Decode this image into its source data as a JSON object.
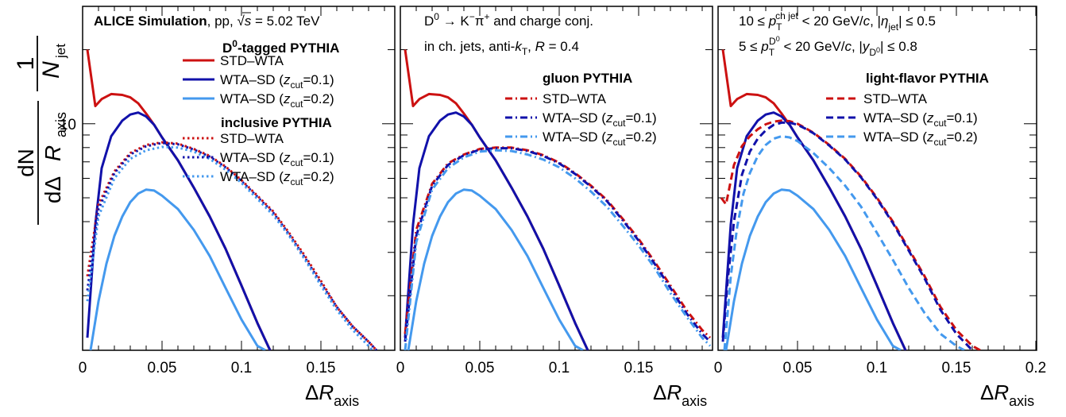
{
  "y_title": {
    "one": "1",
    "n": "N",
    "n_sub": "jet",
    "dn": "dN",
    "d": "dΔ",
    "r": "R",
    "r_sub": "axis"
  },
  "x_title": {
    "delta": "Δ",
    "r": "R",
    "sub": "axis"
  },
  "colors": {
    "red": "#cc1111",
    "darkblue": "#1111aa",
    "lightblue": "#4499ee"
  },
  "chart_data": [
    {
      "type": "line",
      "panel": "left",
      "xlim": [
        0,
        0.2
      ],
      "ylog": true,
      "y_tick_label": "10",
      "x_tick_labels": [
        "0",
        "0.05",
        "0.1",
        "0.15"
      ],
      "texts": {
        "alice": "ALICE Simulation",
        "system": ", pp, ",
        "sqrt": "√",
        "s": "s",
        "energy": " = 5.02 TeV",
        "head1_pre": "D",
        "head1_sup": "0",
        "head1_post": "-tagged PYTHIA",
        "head2": "inclusive PYTHIA"
      },
      "legend": [
        {
          "label": "STD–WTA",
          "style": "solid",
          "color": "red"
        },
        {
          "label": "WTA–SD (",
          "z": "z",
          "zsub": "cut",
          "rest": "=0.1)",
          "style": "solid",
          "color": "darkblue"
        },
        {
          "label": "WTA–SD (",
          "z": "z",
          "zsub": "cut",
          "rest": "=0.2)",
          "style": "solid",
          "color": "lightblue"
        },
        {
          "label": "STD–WTA",
          "style": "dotted",
          "color": "red"
        },
        {
          "label": "WTA–SD (",
          "z": "z",
          "zsub": "cut",
          "rest": "=0.1)",
          "style": "dotted",
          "color": "darkblue"
        },
        {
          "label": "WTA–SD (",
          "z": "z",
          "zsub": "cut",
          "rest": "=0.2)",
          "style": "dotted",
          "color": "lightblue"
        }
      ],
      "series": [
        {
          "style": "solid",
          "color": "red",
          "x": [
            0.003,
            0.008,
            0.012,
            0.018,
            0.025,
            0.03,
            0.035,
            0.04,
            0.045,
            0.05,
            0.06,
            0.07,
            0.08,
            0.09,
            0.1,
            0.11,
            0.118
          ],
          "y": [
            20,
            11.8,
            12.6,
            13.2,
            13.1,
            12.8,
            12.1,
            11,
            9.9,
            8.8,
            7.1,
            5.5,
            4.2,
            3.1,
            2.2,
            1.55,
            1.2
          ]
        },
        {
          "style": "solid",
          "color": "darkblue",
          "x": [
            0.003,
            0.008,
            0.012,
            0.018,
            0.025,
            0.03,
            0.035,
            0.04,
            0.045,
            0.05,
            0.06,
            0.07,
            0.08,
            0.09,
            0.1,
            0.11,
            0.118
          ],
          "y": [
            1.35,
            3.9,
            6.6,
            8.9,
            10.3,
            10.9,
            11.1,
            10.7,
            9.9,
            8.8,
            7.1,
            5.5,
            4.2,
            3.1,
            2.2,
            1.55,
            1.2
          ]
        },
        {
          "style": "solid",
          "color": "lightblue",
          "x": [
            0.005,
            0.01,
            0.015,
            0.02,
            0.025,
            0.03,
            0.035,
            0.04,
            0.045,
            0.05,
            0.06,
            0.07,
            0.08,
            0.09,
            0.1,
            0.11,
            0.115
          ],
          "y": [
            1.2,
            1.9,
            2.7,
            3.5,
            4.2,
            4.8,
            5.2,
            5.4,
            5.35,
            5.1,
            4.5,
            3.7,
            2.9,
            2.15,
            1.6,
            1.25,
            1.2
          ]
        },
        {
          "style": "dotted",
          "color": "red",
          "x": [
            0.003,
            0.01,
            0.02,
            0.03,
            0.04,
            0.05,
            0.06,
            0.07,
            0.08,
            0.09,
            0.1,
            0.11,
            0.12,
            0.13,
            0.14,
            0.15,
            0.16,
            0.17,
            0.18,
            0.185
          ],
          "y": [
            2.4,
            4.7,
            6.4,
            7.6,
            8.2,
            8.4,
            8.3,
            7.9,
            7.4,
            6.7,
            5.9,
            5.1,
            4.4,
            3.6,
            2.9,
            2.3,
            1.8,
            1.5,
            1.3,
            1.2
          ]
        },
        {
          "style": "dotted",
          "color": "darkblue",
          "x": [
            0.003,
            0.01,
            0.02,
            0.03,
            0.04,
            0.05,
            0.06,
            0.07,
            0.08,
            0.09,
            0.1,
            0.11,
            0.12,
            0.13,
            0.14,
            0.15,
            0.16,
            0.17,
            0.18,
            0.185
          ],
          "y": [
            2.1,
            4.5,
            6.3,
            7.5,
            8.1,
            8.35,
            8.25,
            7.85,
            7.35,
            6.65,
            5.85,
            5.05,
            4.35,
            3.55,
            2.85,
            2.25,
            1.8,
            1.5,
            1.3,
            1.2
          ]
        },
        {
          "style": "dotted",
          "color": "lightblue",
          "x": [
            0.003,
            0.01,
            0.02,
            0.03,
            0.04,
            0.05,
            0.06,
            0.07,
            0.08,
            0.09,
            0.1,
            0.11,
            0.12,
            0.13,
            0.14,
            0.15,
            0.16,
            0.17,
            0.18,
            0.185
          ],
          "y": [
            1.9,
            4.2,
            6.0,
            7.2,
            7.8,
            8.05,
            8.0,
            7.7,
            7.2,
            6.5,
            5.75,
            4.95,
            4.25,
            3.5,
            2.8,
            2.2,
            1.75,
            1.45,
            1.25,
            1.15
          ]
        }
      ]
    },
    {
      "type": "line",
      "panel": "middle",
      "xlim": [
        0,
        0.2
      ],
      "ylog": true,
      "x_tick_labels": [
        "0",
        "0.05",
        "0.1",
        "0.15"
      ],
      "texts": {
        "decay_d": "D",
        "decay_d_sup": "0",
        "decay_rest_pre": " → K",
        "decay_k_sup": "−",
        "decay_pi": "π",
        "decay_pi_sup": "+",
        "decay_post": " and charge conj.",
        "jets_pre": "in ch. jets, anti-",
        "jets_k": "k",
        "jets_k_sub": "T",
        "jets_sep": ", ",
        "jets_r": "R",
        "jets_post": " = 0.4",
        "head": "gluon PYTHIA"
      },
      "legend": [
        {
          "label": "STD–WTA",
          "style": "dashdot",
          "color": "red"
        },
        {
          "label": "WTA–SD (",
          "z": "z",
          "zsub": "cut",
          "rest": "=0.1)",
          "style": "dashdot",
          "color": "darkblue"
        },
        {
          "label": "WTA–SD (",
          "z": "z",
          "zsub": "cut",
          "rest": "=0.2)",
          "style": "dashdot",
          "color": "lightblue"
        }
      ],
      "series": [
        {
          "style": "solid",
          "color": "red",
          "x": [
            0.003,
            0.008,
            0.012,
            0.018,
            0.025,
            0.03,
            0.035,
            0.04,
            0.045,
            0.05,
            0.06,
            0.07,
            0.08,
            0.09,
            0.1,
            0.11,
            0.118
          ],
          "y": [
            20,
            11.8,
            12.6,
            13.2,
            13.1,
            12.8,
            12.1,
            11,
            9.9,
            8.8,
            7.1,
            5.5,
            4.2,
            3.1,
            2.2,
            1.55,
            1.2
          ]
        },
        {
          "style": "solid",
          "color": "darkblue",
          "x": [
            0.003,
            0.008,
            0.012,
            0.018,
            0.025,
            0.03,
            0.035,
            0.04,
            0.045,
            0.05,
            0.06,
            0.07,
            0.08,
            0.09,
            0.1,
            0.11,
            0.118
          ],
          "y": [
            1.35,
            3.9,
            6.6,
            8.9,
            10.3,
            10.9,
            11.1,
            10.7,
            9.9,
            8.8,
            7.1,
            5.5,
            4.2,
            3.1,
            2.2,
            1.55,
            1.2
          ]
        },
        {
          "style": "solid",
          "color": "lightblue",
          "x": [
            0.005,
            0.01,
            0.015,
            0.02,
            0.025,
            0.03,
            0.035,
            0.04,
            0.045,
            0.05,
            0.06,
            0.07,
            0.08,
            0.09,
            0.1,
            0.11,
            0.115
          ],
          "y": [
            1.2,
            1.9,
            2.7,
            3.5,
            4.2,
            4.8,
            5.2,
            5.4,
            5.35,
            5.1,
            4.5,
            3.7,
            2.9,
            2.15,
            1.6,
            1.25,
            1.2
          ]
        },
        {
          "style": "dashdot",
          "color": "red",
          "x": [
            0.003,
            0.01,
            0.02,
            0.03,
            0.04,
            0.05,
            0.06,
            0.07,
            0.08,
            0.09,
            0.1,
            0.11,
            0.12,
            0.13,
            0.14,
            0.15,
            0.16,
            0.17,
            0.18,
            0.19,
            0.195
          ],
          "y": [
            1.4,
            3.7,
            5.7,
            6.9,
            7.5,
            7.9,
            8.0,
            8.0,
            7.8,
            7.45,
            6.95,
            6.3,
            5.6,
            4.9,
            4.1,
            3.4,
            2.75,
            2.2,
            1.75,
            1.45,
            1.35
          ]
        },
        {
          "style": "dashdot",
          "color": "darkblue",
          "x": [
            0.003,
            0.01,
            0.02,
            0.03,
            0.04,
            0.05,
            0.06,
            0.07,
            0.08,
            0.09,
            0.1,
            0.11,
            0.12,
            0.13,
            0.14,
            0.15,
            0.16,
            0.17,
            0.18,
            0.19,
            0.195
          ],
          "y": [
            1.3,
            3.5,
            5.6,
            6.8,
            7.45,
            7.85,
            7.95,
            7.95,
            7.75,
            7.4,
            6.9,
            6.25,
            5.55,
            4.85,
            4.05,
            3.35,
            2.7,
            2.15,
            1.7,
            1.4,
            1.3
          ]
        },
        {
          "style": "dashdot",
          "color": "lightblue",
          "x": [
            0.003,
            0.01,
            0.02,
            0.03,
            0.04,
            0.05,
            0.06,
            0.07,
            0.08,
            0.09,
            0.1,
            0.11,
            0.12,
            0.13,
            0.14,
            0.15,
            0.16,
            0.17,
            0.18,
            0.19,
            0.195
          ],
          "y": [
            1.2,
            3.3,
            5.4,
            6.6,
            7.3,
            7.7,
            7.8,
            7.75,
            7.5,
            7.15,
            6.65,
            6.0,
            5.3,
            4.6,
            3.85,
            3.2,
            2.6,
            2.05,
            1.65,
            1.35,
            1.25
          ]
        }
      ]
    },
    {
      "type": "line",
      "panel": "right",
      "xlim": [
        0,
        0.2
      ],
      "ylog": true,
      "x_tick_labels": [
        "0",
        "0.05",
        "0.1",
        "0.15",
        "0.2"
      ],
      "texts": {
        "c1_pre": "10 ≤ ",
        "c1_p": "p",
        "c1_sub": "T",
        "c1_sup": "ch jet",
        "c1_mid": " < 20 GeV/",
        "c1_c": "c",
        "c1_sep": ", |",
        "c1_eta": "η",
        "c1_eta_sub": "jet",
        "c1_post": "| ≤ 0.5",
        "c2_pre": "5 ≤ ",
        "c2_p": "p",
        "c2_sub": "T",
        "c2_sup": "D",
        "c2_sup2": "0",
        "c2_mid": " < 20 GeV/",
        "c2_c": "c",
        "c2_sep": ", |",
        "c2_y": "y",
        "c2_y_sub": "D",
        "c2_y_sub2": "0",
        "c2_post": "| ≤ 0.8",
        "head": "light-flavor PYTHIA"
      },
      "legend": [
        {
          "label": "STD–WTA",
          "style": "dashed",
          "color": "red"
        },
        {
          "label": "WTA–SD (",
          "z": "z",
          "zsub": "cut",
          "rest": "=0.1)",
          "style": "dashed",
          "color": "darkblue"
        },
        {
          "label": "WTA–SD (",
          "z": "z",
          "zsub": "cut",
          "rest": "=0.2)",
          "style": "dashed",
          "color": "lightblue"
        }
      ],
      "series": [
        {
          "style": "solid",
          "color": "red",
          "x": [
            0.003,
            0.008,
            0.012,
            0.018,
            0.025,
            0.03,
            0.035,
            0.04,
            0.045,
            0.05,
            0.06,
            0.07,
            0.08,
            0.09,
            0.1,
            0.11,
            0.118
          ],
          "y": [
            20,
            11.8,
            12.6,
            13.2,
            13.1,
            12.8,
            12.1,
            11,
            9.9,
            8.8,
            7.1,
            5.5,
            4.2,
            3.1,
            2.2,
            1.55,
            1.2
          ]
        },
        {
          "style": "solid",
          "color": "darkblue",
          "x": [
            0.003,
            0.008,
            0.012,
            0.018,
            0.025,
            0.03,
            0.035,
            0.04,
            0.045,
            0.05,
            0.06,
            0.07,
            0.08,
            0.09,
            0.1,
            0.11,
            0.118
          ],
          "y": [
            1.35,
            3.9,
            6.6,
            8.9,
            10.3,
            10.9,
            11.1,
            10.7,
            9.9,
            8.8,
            7.1,
            5.5,
            4.2,
            3.1,
            2.2,
            1.55,
            1.2
          ]
        },
        {
          "style": "solid",
          "color": "lightblue",
          "x": [
            0.005,
            0.01,
            0.015,
            0.02,
            0.025,
            0.03,
            0.035,
            0.04,
            0.045,
            0.05,
            0.06,
            0.07,
            0.08,
            0.09,
            0.1,
            0.11,
            0.115
          ],
          "y": [
            1.2,
            1.9,
            2.7,
            3.5,
            4.2,
            4.8,
            5.2,
            5.4,
            5.35,
            5.1,
            4.5,
            3.7,
            2.9,
            2.15,
            1.6,
            1.25,
            1.2
          ]
        },
        {
          "style": "dashed",
          "color": "red",
          "x": [
            0.002,
            0.005,
            0.01,
            0.015,
            0.02,
            0.025,
            0.03,
            0.035,
            0.04,
            0.045,
            0.05,
            0.055,
            0.06,
            0.07,
            0.08,
            0.09,
            0.1,
            0.11,
            0.12,
            0.13,
            0.14,
            0.15,
            0.16,
            0.165
          ],
          "y": [
            5.0,
            4.7,
            6.8,
            8.1,
            8.9,
            9.5,
            9.95,
            10.2,
            10.3,
            10.25,
            10.0,
            9.6,
            9.2,
            8.2,
            7.2,
            6.1,
            5.0,
            4.0,
            3.1,
            2.4,
            1.8,
            1.45,
            1.25,
            1.2
          ]
        },
        {
          "style": "dashed",
          "color": "darkblue",
          "x": [
            0.003,
            0.006,
            0.01,
            0.015,
            0.02,
            0.025,
            0.03,
            0.035,
            0.04,
            0.045,
            0.05,
            0.055,
            0.06,
            0.07,
            0.08,
            0.09,
            0.1,
            0.11,
            0.12,
            0.13,
            0.14,
            0.15,
            0.16,
            0.165
          ],
          "y": [
            1.3,
            2.3,
            4.0,
            6.2,
            7.7,
            8.7,
            9.4,
            9.9,
            10.1,
            10.1,
            9.9,
            9.55,
            9.15,
            8.15,
            7.15,
            6.05,
            4.95,
            3.95,
            3.05,
            2.35,
            1.75,
            1.4,
            1.2,
            1.15
          ]
        },
        {
          "style": "dashed",
          "color": "lightblue",
          "x": [
            0.004,
            0.008,
            0.012,
            0.016,
            0.02,
            0.025,
            0.03,
            0.035,
            0.04,
            0.045,
            0.05,
            0.06,
            0.07,
            0.08,
            0.09,
            0.1,
            0.11,
            0.12,
            0.13,
            0.14,
            0.15,
            0.155
          ],
          "y": [
            1.2,
            2.4,
            3.8,
            5.2,
            6.3,
            7.4,
            8.2,
            8.7,
            8.9,
            8.8,
            8.5,
            7.6,
            6.6,
            5.6,
            4.6,
            3.6,
            2.8,
            2.15,
            1.7,
            1.4,
            1.25,
            1.2
          ]
        }
      ]
    }
  ]
}
